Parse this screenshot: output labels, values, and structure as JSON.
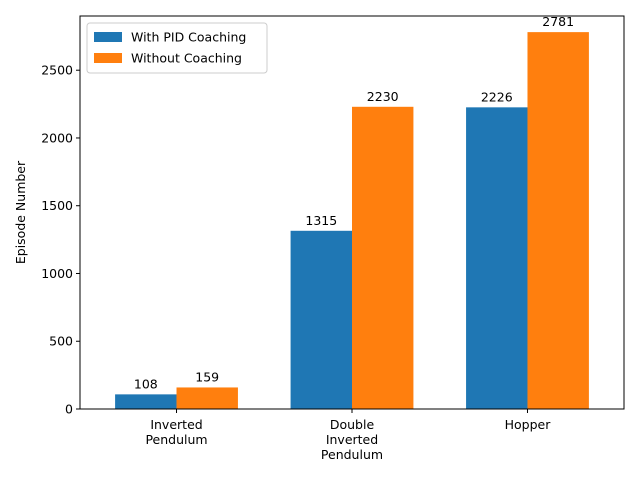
{
  "chart_data": {
    "type": "bar",
    "title": "",
    "xlabel": "",
    "ylabel": "Episode Number",
    "ylim": [
      0,
      2900
    ],
    "yticks": [
      0,
      500,
      1000,
      1500,
      2000,
      2500
    ],
    "categories": [
      [
        "Inverted",
        "Pendulum"
      ],
      [
        "Double",
        "Inverted",
        "Pendulum"
      ],
      [
        "Hopper"
      ]
    ],
    "series": [
      {
        "name": "With PID Coaching",
        "color": "#1f77b4",
        "values": [
          108,
          1315,
          2226
        ]
      },
      {
        "name": "Without Coaching",
        "color": "#ff7f0e",
        "values": [
          159,
          2230,
          2781
        ]
      }
    ],
    "grid": false,
    "legend_position": "top-left"
  }
}
